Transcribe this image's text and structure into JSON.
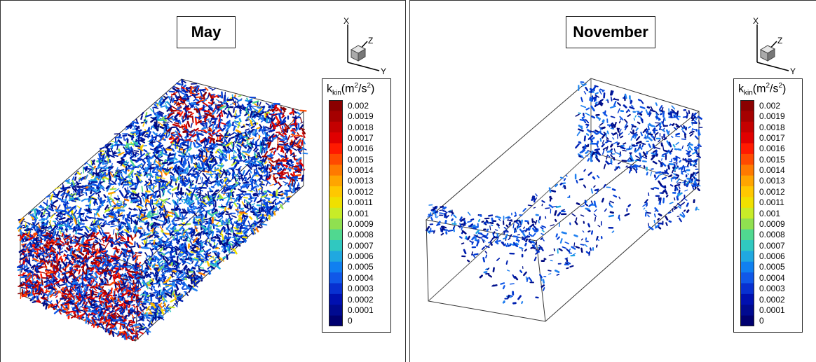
{
  "panels": [
    {
      "title": "May",
      "axes": {
        "x": "X",
        "y": "Y",
        "z": "Z"
      },
      "legend": {
        "symbol": "k",
        "subscript": "kin",
        "unit_open": "(m",
        "unit_sq1": "2",
        "unit_mid": "/s",
        "unit_sq2": "2",
        "unit_close": ")",
        "ticks": [
          "0.002",
          "0.0019",
          "0.0018",
          "0.0017",
          "0.0016",
          "0.0015",
          "0.0014",
          "0.0013",
          "0.0012",
          "0.0011",
          "0.001",
          "0.0009",
          "0.0008",
          "0.0007",
          "0.0006",
          "0.0005",
          "0.0004",
          "0.0003",
          "0.0002",
          "0.0001",
          "0"
        ]
      }
    },
    {
      "title": "November",
      "axes": {
        "x": "X",
        "y": "Y",
        "z": "Z"
      },
      "legend": {
        "symbol": "k",
        "subscript": "kin",
        "unit_open": "(m",
        "unit_sq1": "2",
        "unit_mid": "/s",
        "unit_sq2": "2",
        "unit_close": ")",
        "ticks": [
          "0.002",
          "0.0019",
          "0.0018",
          "0.0017",
          "0.0016",
          "0.0015",
          "0.0014",
          "0.0013",
          "0.0012",
          "0.0011",
          "0.001",
          "0.0009",
          "0.0008",
          "0.0007",
          "0.0006",
          "0.0005",
          "0.0004",
          "0.0003",
          "0.0002",
          "0.0001",
          "0"
        ]
      }
    }
  ],
  "colormap": [
    "#8b0000",
    "#a50000",
    "#c40000",
    "#e00000",
    "#ff1a00",
    "#ff4a00",
    "#ff7a00",
    "#ffa500",
    "#ffc800",
    "#f0e000",
    "#c8ec28",
    "#90e050",
    "#50d890",
    "#30c8c0",
    "#20a8e0",
    "#1080f0",
    "#1058e8",
    "#0830d0",
    "#0010b0",
    "#000a90",
    "#000070"
  ]
}
